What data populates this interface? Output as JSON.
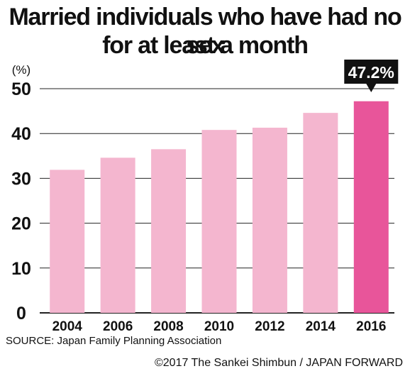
{
  "title_line1": "Married individuals who have had no sex",
  "title_line2": "for at least a month",
  "source": "SOURCE: Japan Family Planning Association",
  "copyright": "©2017 The Sankei Shimbun / JAPAN FORWARD",
  "colors": {
    "bar": "#f4b6cf",
    "highlight": "#e8559a",
    "callout": "#111111",
    "grid": "#222222"
  },
  "chart_data": {
    "type": "bar",
    "title": "Married individuals who have had no sex for at least a month",
    "categories": [
      "2004",
      "2006",
      "2008",
      "2010",
      "2012",
      "2014",
      "2016"
    ],
    "values": [
      31.9,
      34.6,
      36.5,
      40.8,
      41.3,
      44.6,
      47.2
    ],
    "ylabel": "(%)",
    "ylim": [
      0,
      50
    ],
    "yticks": [
      0,
      10,
      20,
      30,
      40,
      50
    ],
    "grid": true,
    "highlight_index": 6,
    "annotation": "47.2%"
  }
}
